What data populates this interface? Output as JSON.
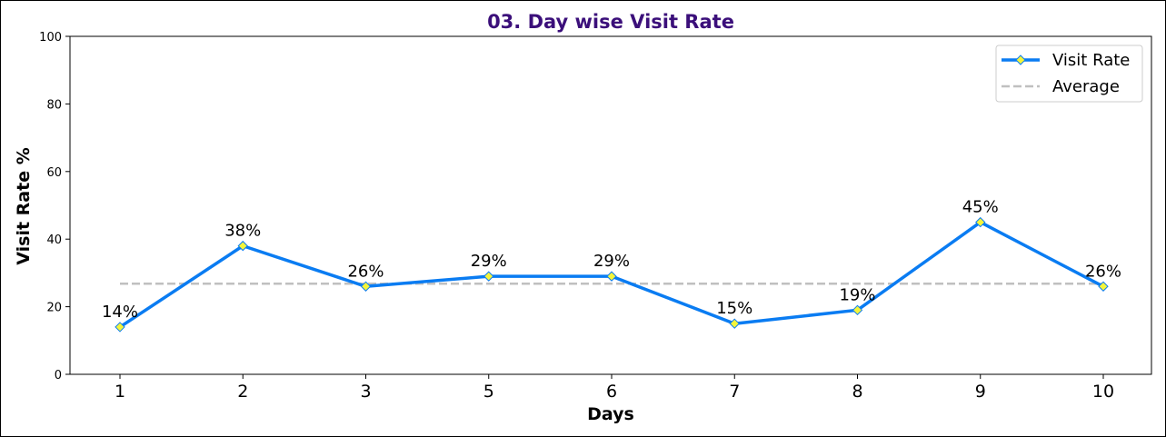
{
  "chart_data": {
    "type": "line",
    "title": "03. Day wise Visit Rate",
    "xlabel": "Days",
    "ylabel": "Visit Rate %",
    "categories": [
      "1",
      "2",
      "3",
      "5",
      "6",
      "7",
      "8",
      "9",
      "10"
    ],
    "series": [
      {
        "name": "Visit Rate",
        "values": [
          14,
          38,
          26,
          29,
          29,
          15,
          19,
          45,
          26
        ],
        "labels": [
          "14%",
          "38%",
          "26%",
          "29%",
          "29%",
          "15%",
          "19%",
          "45%",
          "26%"
        ],
        "color": "#0a7cf2",
        "marker_color": "#f5f53a"
      },
      {
        "name": "Average",
        "values": [
          26.8,
          26.8,
          26.8,
          26.8,
          26.8,
          26.8,
          26.8,
          26.8,
          26.8
        ],
        "color": "#c0c0c0",
        "style": "dashed"
      }
    ],
    "ylim": [
      0,
      100
    ],
    "yticks": [
      "0",
      "20",
      "40",
      "60",
      "80",
      "100"
    ],
    "legend": "top-right",
    "grid": false,
    "title_color": "#3b0f7a"
  }
}
